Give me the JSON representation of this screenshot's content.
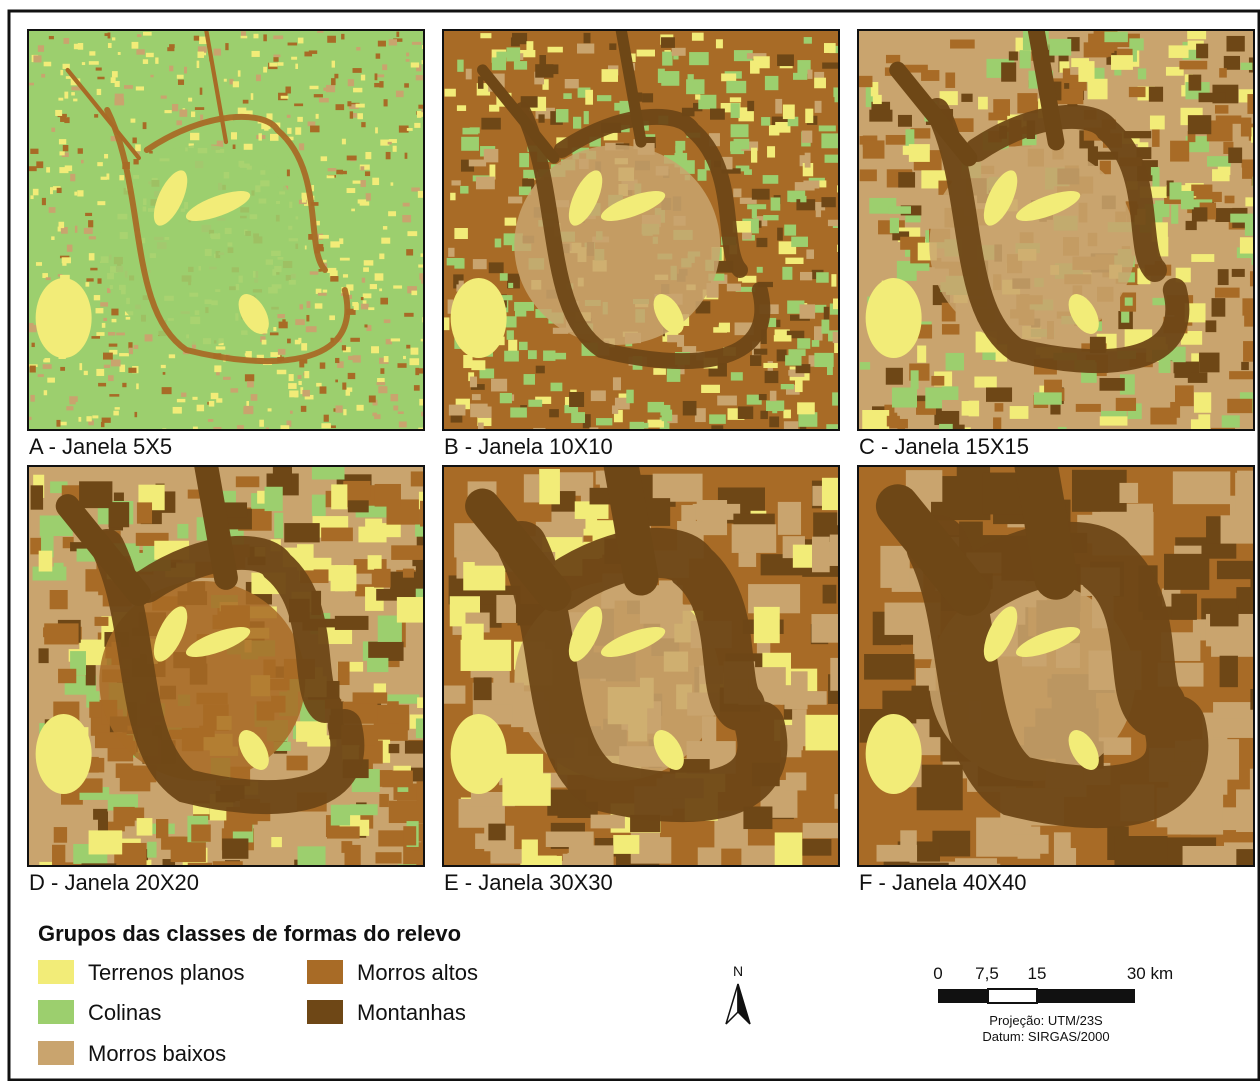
{
  "panels": [
    {
      "label": "A - Janela 5X5"
    },
    {
      "label": "B - Janela 10X10"
    },
    {
      "label": "C - Janela 15X15"
    },
    {
      "label": "D - Janela 20X20"
    },
    {
      "label": "E - Janela 30X30"
    },
    {
      "label": "F - Janela 40X40"
    }
  ],
  "legend": {
    "title": "Grupos das classes de formas do relevo",
    "items": [
      {
        "label": "Terrenos planos",
        "color": "#f2ec78"
      },
      {
        "label": "Colinas",
        "color": "#9ccf6e"
      },
      {
        "label": "Morros baixos",
        "color": "#c9a46e"
      },
      {
        "label": "Morros altos",
        "color": "#a86b26"
      },
      {
        "label": "Montanhas",
        "color": "#6e4716"
      }
    ]
  },
  "north": "N",
  "scale_bar": {
    "labels": [
      "0",
      "7,5",
      "15",
      "30 km"
    ],
    "projection": "Projeção: UTM/23S",
    "datum": "Datum: SIRGAS/2000"
  }
}
